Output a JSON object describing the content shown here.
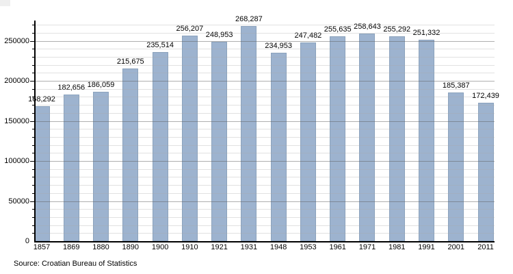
{
  "chart_data": {
    "type": "bar",
    "title": "",
    "xlabel": "",
    "ylabel": "",
    "categories": [
      "1857",
      "1869",
      "1880",
      "1890",
      "1900",
      "1910",
      "1921",
      "1931",
      "1948",
      "1953",
      "1961",
      "1971",
      "1981",
      "1991",
      "2001",
      "2011"
    ],
    "values": [
      168292,
      182656,
      186059,
      215675,
      235514,
      256207,
      248953,
      268287,
      234953,
      247482,
      255635,
      258643,
      255292,
      251332,
      185387,
      172439
    ],
    "value_labels": [
      "168,292",
      "182,656",
      "186,059",
      "215,675",
      "235,514",
      "256,207",
      "248,953",
      "268,287",
      "234,953",
      "247,482",
      "255,635",
      "258,643",
      "255,292",
      "251,332",
      "185,387",
      "172,439"
    ],
    "y_ticks": [
      0,
      50000,
      100000,
      150000,
      200000,
      250000
    ],
    "y_tick_labels": [
      "0",
      "50000",
      "100000",
      "150000",
      "200000",
      "250000"
    ],
    "ylim": [
      0,
      275000
    ],
    "minor_grid_step": 10000,
    "major_grid_step": 50000,
    "grid": true,
    "legend": false,
    "bar_color": "#9db3cf",
    "bar_border_color": "#8ba2bc",
    "axis_color": "#000000",
    "major_grid_color": "#ababab",
    "minor_grid_color": "#e8e8e8"
  },
  "source_note": "Source: Croatian Bureau of Statistics"
}
